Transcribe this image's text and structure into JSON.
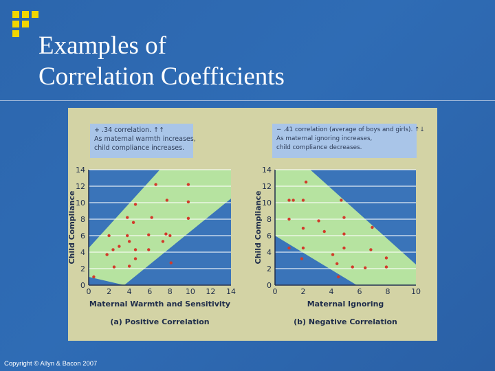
{
  "slide": {
    "title_line1": "Examples of",
    "title_line2": "Correlation Coefficients",
    "copyright": "Copyright © Allyn & Bacon 2007",
    "accent_color": "#f2d600"
  },
  "chart_data": [
    {
      "type": "scatter",
      "subtitle": "(a) Positive Correlation",
      "xlabel": "Maternal Warmth and Sensitivity",
      "ylabel": "Child Compliance",
      "xlim": [
        0,
        14
      ],
      "ylim": [
        0,
        14
      ],
      "xticks": [
        0,
        2,
        4,
        6,
        8,
        10,
        12,
        14
      ],
      "yticks": [
        0,
        2,
        4,
        6,
        8,
        10,
        12,
        14
      ],
      "annotation": [
        "+ .34 correlation. ↑↑",
        "As maternal warmth increases,",
        "child compliance increases."
      ],
      "band": [
        [
          3.5,
          0
        ],
        [
          14,
          10.5
        ],
        [
          14,
          14
        ],
        [
          7,
          14
        ],
        [
          0,
          4.5
        ],
        [
          0,
          1
        ]
      ],
      "points": [
        [
          0.5,
          1
        ],
        [
          1.8,
          3.7
        ],
        [
          2,
          6
        ],
        [
          2.4,
          4.3
        ],
        [
          2.5,
          2.2
        ],
        [
          3,
          4.7
        ],
        [
          3.8,
          8.2
        ],
        [
          3.8,
          6
        ],
        [
          4,
          2.3
        ],
        [
          4,
          5.3
        ],
        [
          4.4,
          7.6
        ],
        [
          4.6,
          4.3
        ],
        [
          4.6,
          3.2
        ],
        [
          4.6,
          9.8
        ],
        [
          5.9,
          4.3
        ],
        [
          5.9,
          6.1
        ],
        [
          6.2,
          8.2
        ],
        [
          6.6,
          12.2
        ],
        [
          7.3,
          5.3
        ],
        [
          7.6,
          6.2
        ],
        [
          7.7,
          10.3
        ],
        [
          8,
          6
        ],
        [
          8.1,
          2.7
        ],
        [
          9.8,
          8.1
        ],
        [
          9.8,
          10.1
        ],
        [
          9.8,
          12.2
        ]
      ],
      "band_color": "#b6e3a0",
      "bg_color": "#3a74b9",
      "point_color": "#d23a2a"
    },
    {
      "type": "scatter",
      "subtitle": "(b) Negative Correlation",
      "xlabel": "Maternal Ignoring",
      "ylabel": "Child Compliance",
      "xlim": [
        0,
        10
      ],
      "ylim": [
        0,
        14
      ],
      "xticks": [
        0,
        2,
        4,
        6,
        8,
        10
      ],
      "yticks": [
        0,
        2,
        4,
        6,
        8,
        10,
        12,
        14
      ],
      "annotation": [
        "− .41 correlation (average of boys and girls). ↑↓",
        "As maternal ignoring increases,",
        "child compliance decreases."
      ],
      "band": [
        [
          0,
          14
        ],
        [
          2.5,
          14
        ],
        [
          10,
          2.5
        ],
        [
          10,
          0
        ],
        [
          5.8,
          0
        ],
        [
          0,
          6
        ]
      ],
      "points": [
        [
          1,
          10.3
        ],
        [
          1,
          8
        ],
        [
          1,
          4.5
        ],
        [
          1.3,
          10.3
        ],
        [
          2,
          10.3
        ],
        [
          2,
          6.9
        ],
        [
          2,
          4.5
        ],
        [
          2.2,
          12.5
        ],
        [
          1.9,
          3.2
        ],
        [
          3.1,
          7.8
        ],
        [
          3.5,
          6.5
        ],
        [
          4.1,
          3.7
        ],
        [
          4.4,
          2.6
        ],
        [
          4.5,
          1
        ],
        [
          4.7,
          10.3
        ],
        [
          4.9,
          8.2
        ],
        [
          4.9,
          6.2
        ],
        [
          4.9,
          4.5
        ],
        [
          5.5,
          2.2
        ],
        [
          6.4,
          2.1
        ],
        [
          6.8,
          4.3
        ],
        [
          6.9,
          7
        ],
        [
          7.9,
          3.3
        ],
        [
          7.9,
          2.2
        ]
      ],
      "band_color": "#b6e3a0",
      "bg_color": "#3a74b9",
      "point_color": "#d23a2a"
    }
  ]
}
